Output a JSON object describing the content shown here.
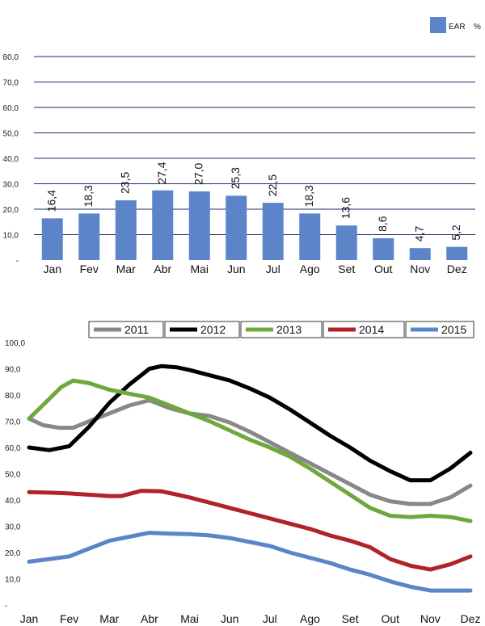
{
  "chart_data": [
    {
      "type": "bar",
      "legend": {
        "series_label": "EAR",
        "unit_label": "%",
        "placement": "top-right"
      },
      "categories": [
        "Jan",
        "Fev",
        "Mar",
        "Abr",
        "Mai",
        "Jun",
        "Jul",
        "Ago",
        "Set",
        "Out",
        "Nov",
        "Dez"
      ],
      "values": [
        16.4,
        18.3,
        23.5,
        27.4,
        27.0,
        25.3,
        22.5,
        18.3,
        13.6,
        8.6,
        4.7,
        5.2
      ],
      "data_labels": [
        "16,4",
        "18,3",
        "23,5",
        "27,4",
        "27,0",
        "25,3",
        "22,5",
        "18,3",
        "13,6",
        "8,6",
        "4,7",
        "5,2"
      ],
      "ylim": [
        0,
        80
      ],
      "yticks": [
        "-",
        "10,0",
        "20,0",
        "30,0",
        "40,0",
        "50,0",
        "60,0",
        "70,0",
        "80,0"
      ],
      "bar_color": "#5b84c9",
      "grid_color": "#1f2a6b",
      "grid": true
    },
    {
      "type": "line",
      "categories": [
        "Jan",
        "Fev",
        "Mar",
        "Abr",
        "Mai",
        "Jun",
        "Jul",
        "Ago",
        "Set",
        "Out",
        "Nov",
        "Dez"
      ],
      "ylim": [
        0,
        100
      ],
      "yticks": [
        "-",
        "10,0",
        "20,0",
        "30,0",
        "40,0",
        "50,0",
        "60,0",
        "70,0",
        "80,0",
        "90,0",
        "100,0"
      ],
      "grid": false,
      "legend_placement": "top",
      "series": [
        {
          "name": "2011",
          "color": "#888888",
          "points": [
            [
              0,
              71
            ],
            [
              0.35,
              68.5
            ],
            [
              0.75,
              67.5
            ],
            [
              1.1,
              67.5
            ],
            [
              1.5,
              70
            ],
            [
              2,
              73
            ],
            [
              2.5,
              76
            ],
            [
              3,
              78
            ],
            [
              3.5,
              75
            ],
            [
              4,
              73
            ],
            [
              4.5,
              72
            ],
            [
              5,
              69.5
            ],
            [
              5.5,
              66
            ],
            [
              6,
              62
            ],
            [
              6.5,
              58
            ],
            [
              7,
              54
            ],
            [
              7.5,
              50
            ],
            [
              8,
              46
            ],
            [
              8.5,
              42
            ],
            [
              9,
              39.5
            ],
            [
              9.5,
              38.5
            ],
            [
              10,
              38.5
            ],
            [
              10.5,
              41
            ],
            [
              11,
              45.5
            ]
          ]
        },
        {
          "name": "2012",
          "color": "#000000",
          "points": [
            [
              0,
              60
            ],
            [
              0.5,
              59
            ],
            [
              1,
              60.5
            ],
            [
              1.5,
              68
            ],
            [
              2,
              77
            ],
            [
              2.5,
              84
            ],
            [
              3,
              90
            ],
            [
              3.3,
              91
            ],
            [
              3.7,
              90.5
            ],
            [
              4,
              89.5
            ],
            [
              4.5,
              87.5
            ],
            [
              5,
              85.5
            ],
            [
              5.5,
              82.5
            ],
            [
              6,
              79
            ],
            [
              6.5,
              74.5
            ],
            [
              7,
              69.5
            ],
            [
              7.5,
              64.5
            ],
            [
              8,
              60
            ],
            [
              8.5,
              55
            ],
            [
              9,
              51
            ],
            [
              9.5,
              47.5
            ],
            [
              10,
              47.5
            ],
            [
              10.5,
              52
            ],
            [
              11,
              58
            ]
          ]
        },
        {
          "name": "2013",
          "color": "#6fa83a",
          "points": [
            [
              0,
              71
            ],
            [
              0.4,
              77
            ],
            [
              0.8,
              83
            ],
            [
              1.1,
              85.5
            ],
            [
              1.5,
              84.5
            ],
            [
              2,
              82
            ],
            [
              2.5,
              80.5
            ],
            [
              3,
              79
            ],
            [
              3.5,
              76
            ],
            [
              4,
              73
            ],
            [
              4.5,
              70
            ],
            [
              5,
              66.5
            ],
            [
              5.5,
              63
            ],
            [
              6,
              60
            ],
            [
              6.5,
              56.5
            ],
            [
              7,
              52
            ],
            [
              7.5,
              47
            ],
            [
              8,
              42
            ],
            [
              8.5,
              37
            ],
            [
              9,
              34
            ],
            [
              9.5,
              33.5
            ],
            [
              10,
              34
            ],
            [
              10.5,
              33.5
            ],
            [
              11,
              32
            ]
          ]
        },
        {
          "name": "2014",
          "color": "#b0232a",
          "points": [
            [
              0,
              43
            ],
            [
              0.5,
              42.8
            ],
            [
              1,
              42.5
            ],
            [
              1.5,
              42
            ],
            [
              2,
              41.5
            ],
            [
              2.3,
              41.5
            ],
            [
              2.8,
              43.5
            ],
            [
              3.3,
              43.3
            ],
            [
              3.7,
              42
            ],
            [
              4,
              41
            ],
            [
              4.5,
              39
            ],
            [
              5,
              37
            ],
            [
              5.5,
              35
            ],
            [
              6,
              33
            ],
            [
              6.5,
              31
            ],
            [
              7,
              29
            ],
            [
              7.5,
              26.5
            ],
            [
              8,
              24.5
            ],
            [
              8.5,
              22
            ],
            [
              9,
              17.5
            ],
            [
              9.5,
              15
            ],
            [
              10,
              13.5
            ],
            [
              10.5,
              15.5
            ],
            [
              11,
              18.5
            ]
          ]
        },
        {
          "name": "2015",
          "color": "#5b84c9",
          "points": [
            [
              0,
              16.5
            ],
            [
              0.5,
              17.5
            ],
            [
              1,
              18.5
            ],
            [
              1.5,
              21.5
            ],
            [
              2,
              24.5
            ],
            [
              2.5,
              26
            ],
            [
              3,
              27.5
            ],
            [
              3.5,
              27.2
            ],
            [
              4,
              27
            ],
            [
              4.5,
              26.5
            ],
            [
              5,
              25.5
            ],
            [
              5.5,
              24
            ],
            [
              6,
              22.5
            ],
            [
              6.5,
              20
            ],
            [
              7,
              18
            ],
            [
              7.5,
              16
            ],
            [
              8,
              13.5
            ],
            [
              8.5,
              11.5
            ],
            [
              9,
              9
            ],
            [
              9.5,
              7
            ],
            [
              10,
              5.5
            ],
            [
              10.5,
              5.5
            ],
            [
              11,
              5.5
            ]
          ]
        }
      ]
    }
  ]
}
